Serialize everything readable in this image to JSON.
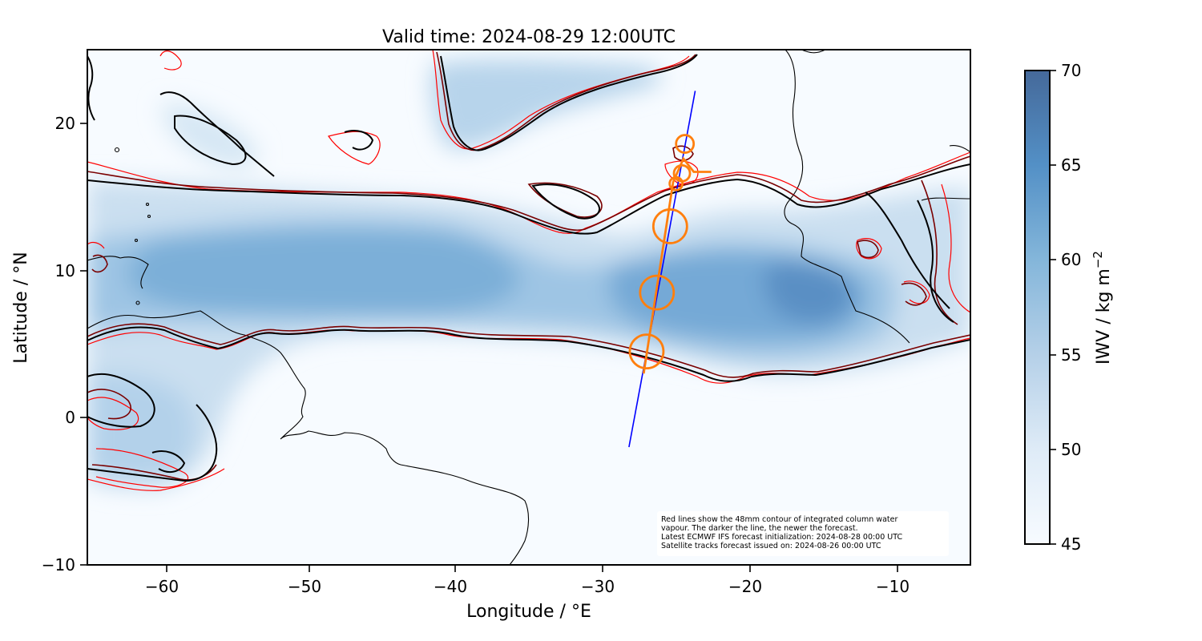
{
  "title": "Valid time: 2024-08-29 12:00UTC",
  "map": {
    "xlabel": "Longitude / °E",
    "ylabel": "Latitude / °N",
    "xlim": [
      -65,
      -5
    ],
    "ylim": [
      -10,
      25
    ],
    "xticks": [
      -60,
      -50,
      -40,
      -30,
      -20,
      -10
    ],
    "yticks": [
      -10,
      0,
      10,
      20
    ],
    "xtick_labels": [
      "−60",
      "−50",
      "−40",
      "−30",
      "−20",
      "−10"
    ],
    "ytick_labels": [
      "−10",
      "0",
      "10",
      "20"
    ]
  },
  "colorbar": {
    "label": "IWV / kg m",
    "label_superscript": "−2",
    "ticks": [
      45,
      50,
      55,
      60,
      65,
      70
    ],
    "tick_labels": [
      "45",
      "50",
      "55",
      "60",
      "65",
      "70"
    ],
    "range": [
      45,
      70
    ],
    "colors": [
      "#f7fbff",
      "#deebf7",
      "#c6dbef",
      "#9ecae1",
      "#6baed6",
      "#4a7fb5",
      "#3a6aa0"
    ]
  },
  "annotation": {
    "lines": [
      "Red lines show the 48mm contour of integrated column water",
      "vapour. The darker the line, the newer the forecast.",
      "Latest ECMWF IFS forecast initialization: 2024-08-28 00:00 UTC",
      "Satellite tracks forecast issued on: 2024-08-26 00:00 UTC"
    ]
  },
  "flight_track": {
    "color": "#ff7f0e",
    "points": [
      [
        -27.2,
        3.0
      ],
      [
        -25.2,
        16.0
      ],
      [
        -24.5,
        17.6
      ],
      [
        -23.8,
        16.7
      ],
      [
        -22.6,
        16.7
      ]
    ],
    "circles": [
      {
        "lon": -27.0,
        "lat": 4.5
      },
      {
        "lon": -26.3,
        "lat": 8.5
      },
      {
        "lon": -25.4,
        "lat": 13.0
      },
      {
        "lon": -25.0,
        "lat": 15.9
      },
      {
        "lon": -24.6,
        "lat": 16.6
      },
      {
        "lon": -24.4,
        "lat": 18.6
      }
    ]
  },
  "satellite_track": {
    "color": "#0000ff",
    "start": {
      "lon": -28.2,
      "lat": -2.0
    },
    "end": {
      "lon": -23.7,
      "lat": 22.2
    }
  },
  "colors": {
    "contour_latest": "#000000",
    "contour_mid": "#6b0000",
    "contour_old": "#ff0000",
    "coastline": "#000000"
  }
}
